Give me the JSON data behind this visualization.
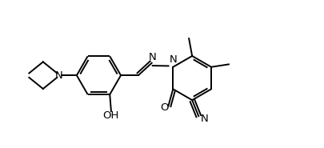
{
  "background": "#ffffff",
  "line_color": "#000000",
  "lw": 1.4,
  "fs": 8.5,
  "figsize": [
    4.05,
    1.85
  ],
  "dpi": 100,
  "xlim": [
    0,
    10.5
  ],
  "ylim": [
    0,
    5.5
  ]
}
